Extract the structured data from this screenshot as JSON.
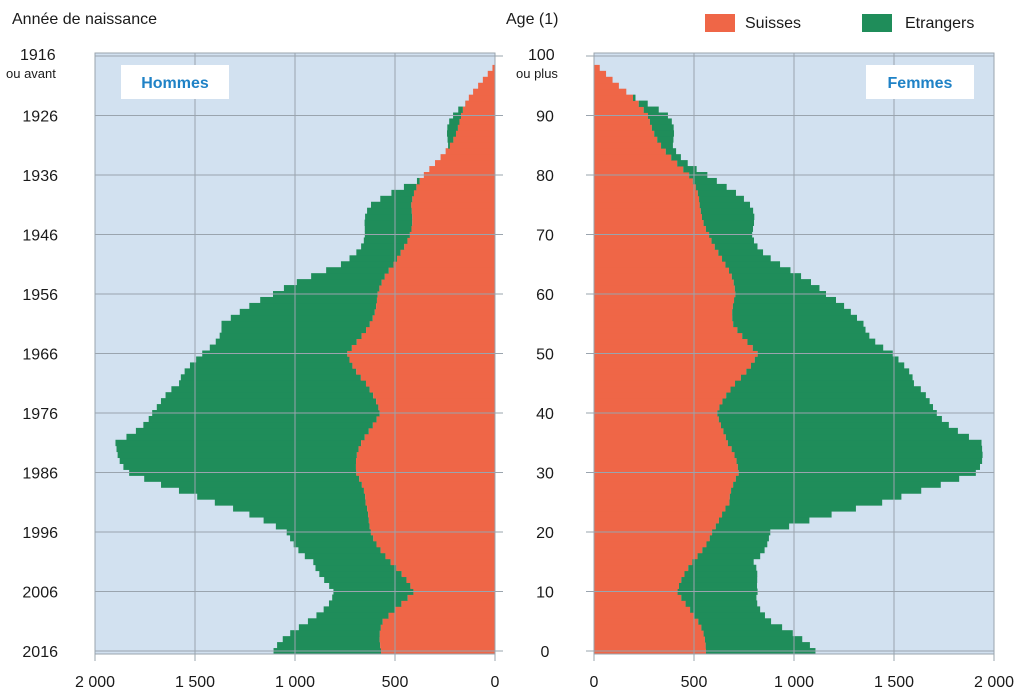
{
  "chart_data": {
    "type": "bar",
    "left_title": "Année de naissance",
    "center_title": "Age (1)",
    "top_year_label": "1916",
    "top_year_sublabel": "ou avant",
    "top_age_label": "100",
    "top_age_sublabel": "ou plus",
    "panel_left_label": "Hommes",
    "panel_right_label": "Femmes",
    "legend": [
      {
        "name": "Suisses",
        "color": "#ef6647"
      },
      {
        "name": "Etrangers",
        "color": "#1f8d5a"
      }
    ],
    "colors": {
      "suisses": "#ef6647",
      "etrangers": "#1f8d5a",
      "background": "#d2e1f0",
      "grid": "#9aa4ae"
    },
    "year_ticks": [
      "1916",
      "1926",
      "1936",
      "1946",
      "1956",
      "1966",
      "1976",
      "1986",
      "1996",
      "2006",
      "2016"
    ],
    "age_ticks": [
      "100",
      "90",
      "80",
      "70",
      "60",
      "50",
      "40",
      "30",
      "20",
      "10",
      "0"
    ],
    "x_ticks_left": [
      "2 000",
      "1 500",
      "1 000",
      "500",
      "0"
    ],
    "x_ticks_right": [
      "0",
      "500",
      "1 000",
      "1 500",
      "2 000"
    ],
    "xlim": [
      0,
      2000
    ],
    "age_range": [
      0,
      100
    ],
    "hommes_key_points": {
      "ages": [
        0,
        5,
        10,
        15,
        20,
        25,
        30,
        35,
        40,
        45,
        50,
        55,
        60,
        65,
        70,
        75,
        80,
        85,
        90,
        95,
        100
      ],
      "suisses": [
        570,
        540,
        430,
        520,
        600,
        670,
        690,
        650,
        600,
        640,
        720,
        650,
        580,
        490,
        450,
        410,
        340,
        250,
        160,
        70,
        0
      ],
      "total": [
        1050,
        950,
        850,
        850,
        1060,
        1440,
        1770,
        1920,
        1750,
        1520,
        1490,
        1400,
        1050,
        800,
        680,
        560,
        360,
        260,
        150,
        60,
        5
      ]
    },
    "femmes_key_points": {
      "ages": [
        0,
        5,
        10,
        15,
        20,
        25,
        30,
        35,
        40,
        45,
        50,
        55,
        60,
        65,
        70,
        75,
        80,
        85,
        90,
        95,
        100
      ],
      "suisses": [
        560,
        500,
        440,
        490,
        570,
        700,
        720,
        650,
        640,
        700,
        800,
        720,
        700,
        640,
        600,
        520,
        460,
        360,
        260,
        110,
        0
      ],
      "total": [
        1050,
        900,
        860,
        740,
        900,
        1480,
        1850,
        1960,
        1750,
        1540,
        1520,
        1380,
        1100,
        960,
        820,
        720,
        600,
        420,
        310,
        120,
        0
      ]
    }
  }
}
